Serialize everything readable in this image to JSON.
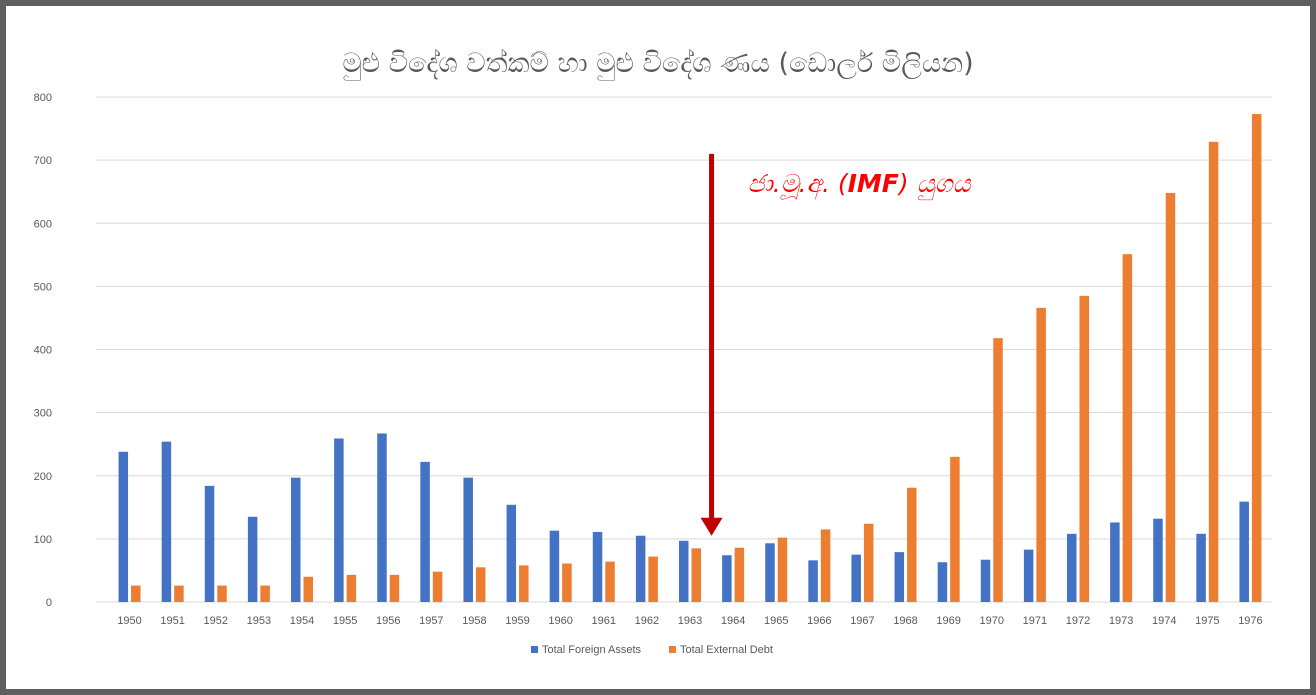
{
  "chart_data": {
    "type": "bar",
    "title": "මුළු විදේශ වත්කම් හා මුළු විදේශ ණය (ඩොලර් මිලියන)",
    "xlabel": "",
    "ylabel": "",
    "ylim": [
      0,
      800
    ],
    "yticks": [
      "0",
      "100",
      "200",
      "300",
      "400",
      "500",
      "600",
      "700",
      "800"
    ],
    "grid": true,
    "legend_position": "bottom",
    "categories": [
      "1950",
      "1951",
      "1952",
      "1953",
      "1954",
      "1955",
      "1956",
      "1957",
      "1958",
      "1959",
      "1960",
      "1961",
      "1962",
      "1963",
      "1964",
      "1965",
      "1966",
      "1967",
      "1968",
      "1969",
      "1970",
      "1971",
      "1972",
      "1973",
      "1974",
      "1975",
      "1976"
    ],
    "series": [
      {
        "name": "Total Foreign Assets",
        "color": "#4472c4",
        "values": [
          238,
          254,
          184,
          135,
          197,
          259,
          267,
          222,
          197,
          154,
          113,
          111,
          105,
          97,
          74,
          93,
          66,
          75,
          79,
          63,
          67,
          83,
          108,
          126,
          132,
          108,
          159
        ]
      },
      {
        "name": "Total External Debt",
        "color": "#ed7d31",
        "values": [
          26,
          26,
          26,
          26,
          40,
          43,
          43,
          48,
          55,
          58,
          61,
          64,
          72,
          85,
          86,
          102,
          115,
          124,
          181,
          230,
          418,
          466,
          485,
          551,
          648,
          729,
          773
        ]
      }
    ],
    "annotation": {
      "prefix": "ජා.මූ.අ. (",
      "highlight": "IMF",
      "suffix": ") යුගය",
      "color": "#ff0000",
      "arrow_color": "#c00000",
      "arrow_x_between": [
        "1963",
        "1964"
      ],
      "arrow_from_value": 710,
      "arrow_to_value": 105
    }
  }
}
